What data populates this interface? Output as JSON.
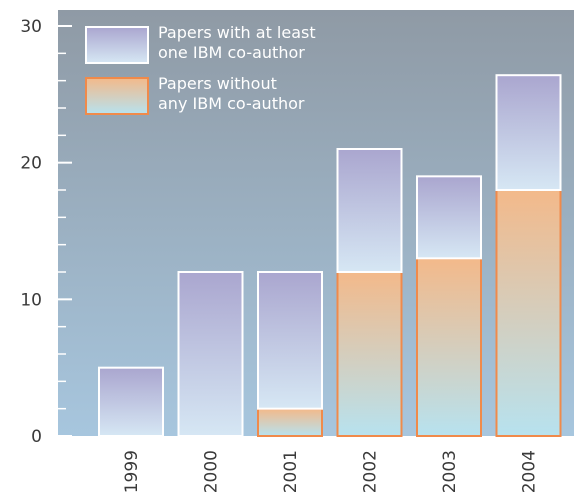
{
  "chart_data": {
    "type": "bar",
    "stacked": true,
    "title": "",
    "xlabel": "",
    "ylabel": "",
    "categories": [
      "1999",
      "2000",
      "2001",
      "2002",
      "2003",
      "2004"
    ],
    "series": [
      {
        "name": "Papers without any IBM co-author",
        "legend_lines": [
          "Papers without",
          "any IBM co-author"
        ],
        "values": [
          0,
          0,
          2,
          12,
          13,
          18
        ],
        "color_top": "#f3b98a",
        "color_bottom": "#b7e2ef",
        "edge": "#f08a4b"
      },
      {
        "name": "Papers with at least one IBM co-author",
        "legend_lines": [
          "Papers with at least",
          "one IBM co-author"
        ],
        "values": [
          5,
          12,
          10,
          9,
          6,
          8.4
        ],
        "color_top": "#aaa6cf",
        "color_bottom": "#d6e7f4",
        "edge": "#ffffff"
      }
    ],
    "ylim": [
      0,
      30
    ],
    "y_ticks": [
      "0",
      "10",
      "20",
      "30"
    ],
    "grid": false,
    "legend_position": "top-left",
    "background_top": "#8f9aa5",
    "background_bottom": "#a7c6de"
  }
}
